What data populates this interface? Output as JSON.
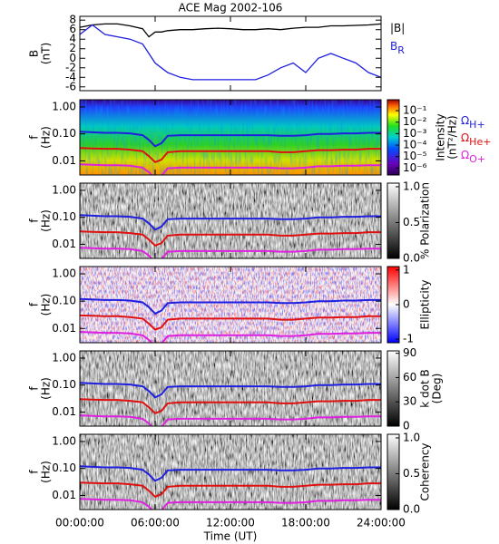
{
  "chart_data": [
    {
      "type": "line",
      "title": "ACE Mag 2002-106",
      "ylabel": [
        "B",
        "(nT)"
      ],
      "x": [
        0,
        1,
        2,
        3,
        4,
        5,
        5.5,
        6,
        6.5,
        7,
        8,
        9,
        10,
        11,
        12,
        13,
        14,
        15,
        16,
        17,
        18,
        19,
        20,
        21,
        22,
        23,
        24
      ],
      "xlim": [
        0,
        24
      ],
      "ylim": [
        -6.8,
        8.8
      ],
      "yticks": [
        8,
        6,
        4,
        2,
        0,
        -2,
        -4,
        -6
      ],
      "series": [
        {
          "name": "|B|",
          "color": "#000000",
          "values": [
            6.5,
            7,
            7.2,
            7.2,
            6.8,
            6.2,
            4.5,
            5.5,
            5.5,
            5.8,
            6,
            6,
            6.2,
            6.3,
            6.2,
            6,
            6,
            6.2,
            6,
            6.3,
            6.5,
            6.5,
            6.8,
            6.8,
            6.9,
            7,
            7.2
          ]
        },
        {
          "name": "B",
          "subscript": "R",
          "color": "#1f1fe0",
          "values": [
            5,
            7,
            5,
            4.5,
            4,
            3,
            1,
            -1,
            -2,
            -3,
            -4,
            -4.5,
            -4.5,
            -4.5,
            -4.5,
            -4.5,
            -4.5,
            -3.5,
            -2,
            -1,
            -3,
            0,
            1,
            0,
            -1,
            -3,
            -4
          ]
        }
      ]
    },
    {
      "type": "spectrogram",
      "colormap": "jet",
      "ylabel": [
        "f",
        "(Hz)"
      ],
      "ylog": true,
      "x": [
        0,
        1,
        2,
        3,
        4,
        5,
        5.5,
        6,
        6.5,
        7,
        8,
        9,
        10,
        11,
        12,
        13,
        14,
        15,
        16,
        17,
        18,
        19,
        20,
        21,
        22,
        23,
        24
      ],
      "xlim": [
        0,
        24
      ],
      "ylim": [
        0.003,
        1.85
      ],
      "yticks": [
        {
          "value": 1,
          "label": "1.00"
        },
        {
          "value": 0.1,
          "label": "0.10"
        },
        {
          "value": 0.01,
          "label": "0.01"
        }
      ],
      "colorbar": {
        "label": [
          "Intensity",
          "(nT²/Hz)"
        ],
        "log": true,
        "lim": [
          2.5e-07,
          0.9
        ],
        "ticks": [
          {
            "value": 0.1,
            "label": "10⁻¹"
          },
          {
            "value": 0.01,
            "label": "10⁻²"
          },
          {
            "value": 0.001,
            "label": "10⁻³"
          },
          {
            "value": 0.0001,
            "label": "10⁻⁴"
          },
          {
            "value": 1e-05,
            "label": "10⁻⁵"
          },
          {
            "value": 1e-06,
            "label": "10⁻⁶"
          }
        ]
      },
      "series": [
        {
          "name": "Ω",
          "subscript": "H+",
          "color": "#1f1fe0",
          "values": [
            0.12,
            0.115,
            0.11,
            0.11,
            0.105,
            0.09,
            0.06,
            0.035,
            0.045,
            0.085,
            0.09,
            0.09,
            0.09,
            0.09,
            0.09,
            0.09,
            0.09,
            0.09,
            0.085,
            0.085,
            0.09,
            0.1,
            0.1,
            0.105,
            0.105,
            0.11,
            0.11
          ]
        },
        {
          "name": "Ω",
          "subscript": "He+",
          "color": "#e01010",
          "values": [
            0.03,
            0.029,
            0.028,
            0.028,
            0.026,
            0.023,
            0.015,
            0.009,
            0.011,
            0.021,
            0.023,
            0.023,
            0.023,
            0.023,
            0.023,
            0.023,
            0.023,
            0.023,
            0.021,
            0.021,
            0.023,
            0.025,
            0.025,
            0.026,
            0.026,
            0.028,
            0.028
          ]
        },
        {
          "name": "Ω",
          "subscript": "O+",
          "color": "#e020e0",
          "values": [
            0.0075,
            0.0072,
            0.0069,
            0.0069,
            0.0066,
            0.0056,
            0.0038,
            0.0022,
            0.0028,
            0.0053,
            0.0056,
            0.0056,
            0.0056,
            0.0056,
            0.0056,
            0.0056,
            0.0056,
            0.0056,
            0.0053,
            0.0053,
            0.0056,
            0.0063,
            0.0063,
            0.0066,
            0.0066,
            0.0069,
            0.0069
          ]
        }
      ]
    },
    {
      "type": "spectrogram",
      "colormap": "gray",
      "ylabel": [
        "f",
        "(Hz)"
      ],
      "ylog": true,
      "x": [
        0,
        1,
        2,
        3,
        4,
        5,
        5.5,
        6,
        6.5,
        7,
        8,
        9,
        10,
        11,
        12,
        13,
        14,
        15,
        16,
        17,
        18,
        19,
        20,
        21,
        22,
        23,
        24
      ],
      "xlim": [
        0,
        24
      ],
      "ylim": [
        0.003,
        1.85
      ],
      "yticks": [
        {
          "value": 1,
          "label": "1.00"
        },
        {
          "value": 0.1,
          "label": "0.10"
        },
        {
          "value": 0.01,
          "label": "0.01"
        }
      ],
      "colorbar": {
        "label": [
          "% Polarization"
        ],
        "lim": [
          0,
          1.05
        ],
        "ticks": [
          {
            "value": 1,
            "label": "1.0"
          },
          {
            "value": 0.5,
            "label": "0.5"
          },
          {
            "value": 0,
            "label": "0.0"
          }
        ]
      },
      "series": [
        {
          "color": "#1f1fe0",
          "values": [
            0.12,
            0.115,
            0.11,
            0.11,
            0.105,
            0.09,
            0.06,
            0.035,
            0.045,
            0.085,
            0.09,
            0.09,
            0.09,
            0.09,
            0.09,
            0.09,
            0.09,
            0.09,
            0.085,
            0.085,
            0.09,
            0.1,
            0.1,
            0.105,
            0.105,
            0.11,
            0.11
          ]
        },
        {
          "color": "#e01010",
          "values": [
            0.03,
            0.029,
            0.028,
            0.028,
            0.026,
            0.023,
            0.015,
            0.009,
            0.011,
            0.021,
            0.023,
            0.023,
            0.023,
            0.023,
            0.023,
            0.023,
            0.023,
            0.023,
            0.021,
            0.021,
            0.023,
            0.025,
            0.025,
            0.026,
            0.026,
            0.028,
            0.028
          ]
        },
        {
          "color": "#e020e0",
          "values": [
            0.0075,
            0.0072,
            0.0069,
            0.0069,
            0.0066,
            0.0056,
            0.0038,
            0.0022,
            0.0028,
            0.0053,
            0.0056,
            0.0056,
            0.0056,
            0.0056,
            0.0056,
            0.0056,
            0.0056,
            0.0056,
            0.0053,
            0.0053,
            0.0056,
            0.0063,
            0.0063,
            0.0066,
            0.0066,
            0.0069,
            0.0069
          ]
        }
      ]
    },
    {
      "type": "spectrogram",
      "colormap": "bwr",
      "ylabel": [
        "f",
        "(Hz)"
      ],
      "ylog": true,
      "x": [
        0,
        1,
        2,
        3,
        4,
        5,
        5.5,
        6,
        6.5,
        7,
        8,
        9,
        10,
        11,
        12,
        13,
        14,
        15,
        16,
        17,
        18,
        19,
        20,
        21,
        22,
        23,
        24
      ],
      "xlim": [
        0,
        24
      ],
      "ylim": [
        0.003,
        1.85
      ],
      "yticks": [
        {
          "value": 1,
          "label": "1.00"
        },
        {
          "value": 0.1,
          "label": "0.10"
        },
        {
          "value": 0.01,
          "label": "0.01"
        }
      ],
      "colorbar": {
        "label": [
          "Ellipticity"
        ],
        "lim": [
          -1.1,
          1.1
        ],
        "ticks": [
          1,
          0,
          -1
        ]
      },
      "series": [
        {
          "color": "#1f1fe0",
          "values": [
            0.12,
            0.115,
            0.11,
            0.11,
            0.105,
            0.09,
            0.06,
            0.035,
            0.045,
            0.085,
            0.09,
            0.09,
            0.09,
            0.09,
            0.09,
            0.09,
            0.09,
            0.09,
            0.085,
            0.085,
            0.09,
            0.1,
            0.1,
            0.105,
            0.105,
            0.11,
            0.11
          ]
        },
        {
          "color": "#e01010",
          "values": [
            0.03,
            0.029,
            0.028,
            0.028,
            0.026,
            0.023,
            0.015,
            0.009,
            0.011,
            0.021,
            0.023,
            0.023,
            0.023,
            0.023,
            0.023,
            0.023,
            0.023,
            0.023,
            0.021,
            0.021,
            0.023,
            0.025,
            0.025,
            0.026,
            0.026,
            0.028,
            0.028
          ]
        },
        {
          "color": "#e020e0",
          "values": [
            0.0075,
            0.0072,
            0.0069,
            0.0069,
            0.0066,
            0.0056,
            0.0038,
            0.0022,
            0.0028,
            0.0053,
            0.0056,
            0.0056,
            0.0056,
            0.0056,
            0.0056,
            0.0056,
            0.0056,
            0.0056,
            0.0053,
            0.0053,
            0.0056,
            0.0063,
            0.0063,
            0.0066,
            0.0066,
            0.0069,
            0.0069
          ]
        }
      ]
    },
    {
      "type": "spectrogram",
      "colormap": "gray",
      "ylabel": [
        "f",
        "(Hz)"
      ],
      "ylog": true,
      "x": [
        0,
        1,
        2,
        3,
        4,
        5,
        5.5,
        6,
        6.5,
        7,
        8,
        9,
        10,
        11,
        12,
        13,
        14,
        15,
        16,
        17,
        18,
        19,
        20,
        21,
        22,
        23,
        24
      ],
      "xlim": [
        0,
        24
      ],
      "ylim": [
        0.003,
        1.85
      ],
      "yticks": [
        {
          "value": 1,
          "label": "1.00"
        },
        {
          "value": 0.1,
          "label": "0.10"
        },
        {
          "value": 0.01,
          "label": "0.01"
        }
      ],
      "colorbar": {
        "label": [
          "k dot B",
          "(Deg)"
        ],
        "lim": [
          0,
          93
        ],
        "ticks": [
          90,
          60,
          30,
          0
        ]
      },
      "series": [
        {
          "color": "#1f1fe0",
          "values": [
            0.12,
            0.115,
            0.11,
            0.11,
            0.105,
            0.09,
            0.06,
            0.035,
            0.045,
            0.085,
            0.09,
            0.09,
            0.09,
            0.09,
            0.09,
            0.09,
            0.09,
            0.09,
            0.085,
            0.085,
            0.09,
            0.1,
            0.1,
            0.105,
            0.105,
            0.11,
            0.11
          ]
        },
        {
          "color": "#e01010",
          "values": [
            0.03,
            0.029,
            0.028,
            0.028,
            0.026,
            0.023,
            0.015,
            0.009,
            0.011,
            0.021,
            0.023,
            0.023,
            0.023,
            0.023,
            0.023,
            0.023,
            0.023,
            0.023,
            0.021,
            0.021,
            0.023,
            0.025,
            0.025,
            0.026,
            0.026,
            0.028,
            0.028
          ]
        },
        {
          "color": "#e020e0",
          "values": [
            0.0075,
            0.0072,
            0.0069,
            0.0069,
            0.0066,
            0.0056,
            0.0038,
            0.0022,
            0.0028,
            0.0053,
            0.0056,
            0.0056,
            0.0056,
            0.0056,
            0.0056,
            0.0056,
            0.0056,
            0.0056,
            0.0053,
            0.0053,
            0.0056,
            0.0063,
            0.0063,
            0.0066,
            0.0066,
            0.0069,
            0.0069
          ]
        }
      ]
    },
    {
      "type": "spectrogram",
      "colormap": "gray",
      "ylabel": [
        "f",
        "(Hz)"
      ],
      "ylog": true,
      "x": [
        0,
        1,
        2,
        3,
        4,
        5,
        5.5,
        6,
        6.5,
        7,
        8,
        9,
        10,
        11,
        12,
        13,
        14,
        15,
        16,
        17,
        18,
        19,
        20,
        21,
        22,
        23,
        24
      ],
      "xlim": [
        0,
        24
      ],
      "ylim": [
        0.003,
        1.85
      ],
      "yticks": [
        {
          "value": 1,
          "label": "1.00"
        },
        {
          "value": 0.1,
          "label": "0.10"
        },
        {
          "value": 0.01,
          "label": "0.01"
        }
      ],
      "colorbar": {
        "label": [
          "Coherency"
        ],
        "lim": [
          0,
          1.05
        ],
        "ticks": [
          {
            "value": 1,
            "label": "1.0"
          },
          {
            "value": 0.5,
            "label": "0.5"
          },
          {
            "value": 0,
            "label": "0.0"
          }
        ]
      },
      "xlabel": "Time (UT)",
      "xticks": [
        {
          "value": 0,
          "label": "00:00:00"
        },
        {
          "value": 6,
          "label": "06:00:00"
        },
        {
          "value": 12,
          "label": "12:00:00"
        },
        {
          "value": 18,
          "label": "18:00:00"
        },
        {
          "value": 24,
          "label": "24:00:00"
        }
      ],
      "series": [
        {
          "color": "#1f1fe0",
          "values": [
            0.12,
            0.115,
            0.11,
            0.11,
            0.105,
            0.09,
            0.06,
            0.035,
            0.045,
            0.085,
            0.09,
            0.09,
            0.09,
            0.09,
            0.09,
            0.09,
            0.09,
            0.09,
            0.085,
            0.085,
            0.09,
            0.1,
            0.1,
            0.105,
            0.105,
            0.11,
            0.11
          ]
        },
        {
          "color": "#e01010",
          "values": [
            0.03,
            0.029,
            0.028,
            0.028,
            0.026,
            0.023,
            0.015,
            0.009,
            0.011,
            0.021,
            0.023,
            0.023,
            0.023,
            0.023,
            0.023,
            0.023,
            0.023,
            0.023,
            0.021,
            0.021,
            0.023,
            0.025,
            0.025,
            0.026,
            0.026,
            0.028,
            0.028
          ]
        },
        {
          "color": "#e020e0",
          "values": [
            0.0075,
            0.0072,
            0.0069,
            0.0069,
            0.0066,
            0.0056,
            0.0038,
            0.0022,
            0.0028,
            0.0053,
            0.0056,
            0.0056,
            0.0056,
            0.0056,
            0.0056,
            0.0056,
            0.0056,
            0.0056,
            0.0053,
            0.0053,
            0.0056,
            0.0063,
            0.0063,
            0.0066,
            0.0066,
            0.0069,
            0.0069
          ]
        }
      ]
    }
  ]
}
